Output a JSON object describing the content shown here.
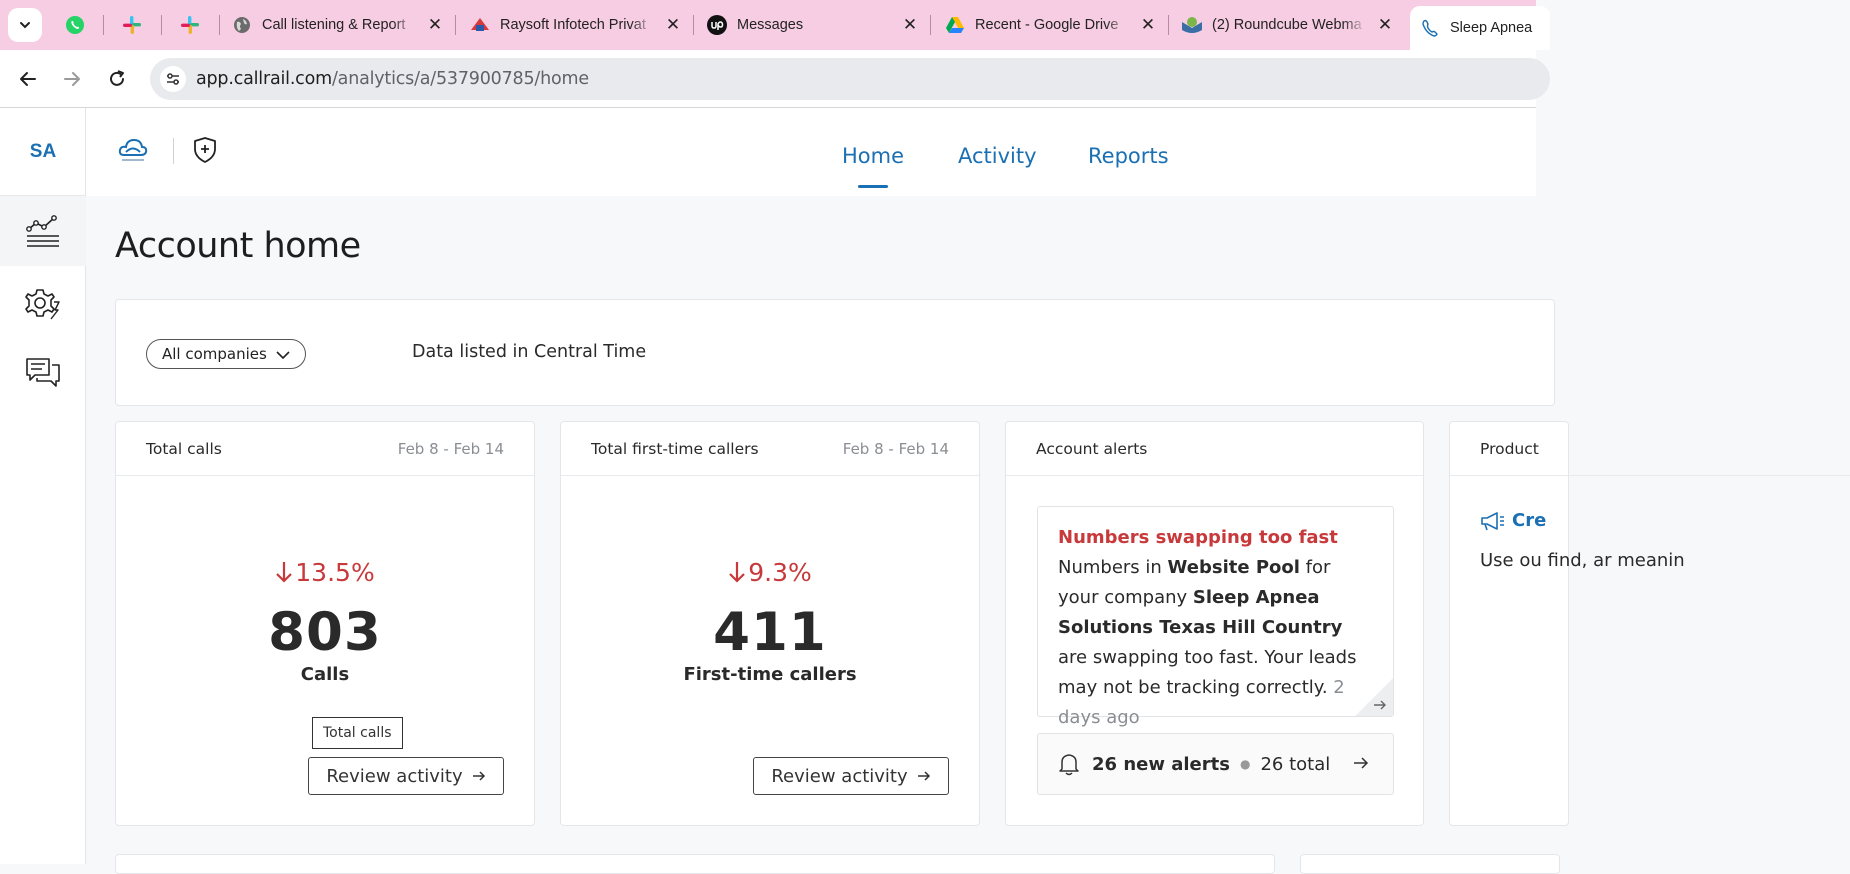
{
  "browser": {
    "tabs": [
      {
        "title": "Call listening & Report",
        "icon": "globe-icon"
      },
      {
        "title": "Raysoft Infotech Privat",
        "icon": "raysoft-icon"
      },
      {
        "title": "Messages",
        "icon": "upwork-icon"
      },
      {
        "title": "Recent - Google Drive",
        "icon": "google-drive-icon"
      },
      {
        "title": "(2) Roundcube Webma",
        "icon": "roundcube-icon"
      },
      {
        "title": "Sleep Apnea",
        "icon": "phone-icon",
        "active": true
      }
    ],
    "close_glyph": "✕",
    "url_host": "app.callrail.com",
    "url_path": "/analytics/a/537900785/home"
  },
  "sidebar": {
    "initials": "SA",
    "items": [
      {
        "name": "analytics",
        "icon": "analytics-chart-icon",
        "active": true
      },
      {
        "name": "settings",
        "icon": "gear-icon"
      },
      {
        "name": "conversations",
        "icon": "chat-bubbles-icon"
      }
    ]
  },
  "header": {
    "nav": [
      {
        "label": "Home",
        "current": true
      },
      {
        "label": "Activity"
      },
      {
        "label": "Reports"
      }
    ]
  },
  "page": {
    "title": "Account home",
    "company_filter": "All companies",
    "timezone_note": "Data listed in Central Time"
  },
  "cards": {
    "total_calls": {
      "title": "Total calls",
      "range": "Feb 8 - Feb 14",
      "delta": "13.5%",
      "value": "803",
      "label": "Calls",
      "tooltip": "Total calls",
      "button": "Review activity"
    },
    "first_time": {
      "title": "Total first-time callers",
      "range": "Feb 8 - Feb 14",
      "delta": "9.3%",
      "value": "411",
      "label": "First-time callers",
      "button": "Review activity"
    },
    "alerts": {
      "title": "Account alerts",
      "alert_title": "Numbers swapping too fast",
      "t1": "Numbers in ",
      "b1": "Website Pool",
      "t2": " for your company ",
      "b2": "Sleep Apnea Solutions Texas Hill Country",
      "t3": " are swapping too fast. Your leads may not be tracking correctly. ",
      "ago": "2 days ago",
      "new_alerts": "26 new alerts",
      "total": "26 total"
    },
    "product": {
      "title": "Product",
      "link": "Cre",
      "text": "Use ou find, ar meanin"
    }
  },
  "colors": {
    "accent": "#1b6fb3",
    "negative": "#c7393a",
    "tabstrip": "#f6cde2"
  }
}
